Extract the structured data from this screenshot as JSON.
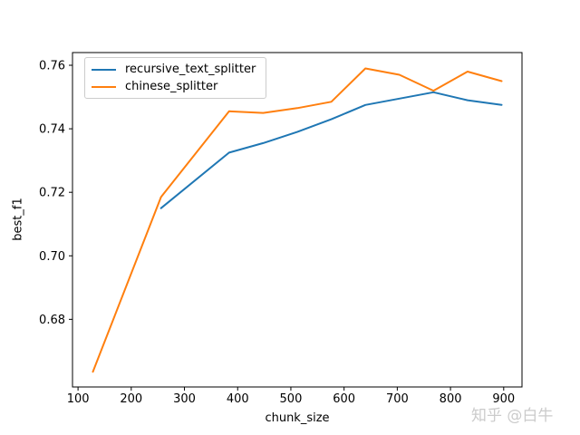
{
  "figure": {
    "watermark": "知乎 @白牛"
  },
  "chart_data": {
    "type": "line",
    "title": "",
    "xlabel": "chunk_size",
    "ylabel": "best_f1",
    "xlim": [
      89.6,
      934.4
    ],
    "ylim": [
      0.6587,
      0.764
    ],
    "x_ticks": [
      100,
      200,
      300,
      400,
      500,
      600,
      700,
      800,
      900
    ],
    "y_ticks": [
      0.68,
      0.7,
      0.72,
      0.74,
      0.76
    ],
    "y_tick_labels": [
      "0.68",
      "0.70",
      "0.72",
      "0.74",
      "0.76"
    ],
    "grid": false,
    "legend_position": "upper left",
    "series": [
      {
        "name": "recursive_text_splitter",
        "color": "#1f77b4",
        "x": [
          256,
          384,
          448,
          512,
          576,
          640,
          704,
          768,
          832,
          896
        ],
        "y": [
          0.715,
          0.7325,
          0.7355,
          0.739,
          0.743,
          0.7475,
          0.7495,
          0.7515,
          0.749,
          0.7475
        ]
      },
      {
        "name": "chinese_splitter",
        "color": "#ff7f0e",
        "x": [
          128,
          256,
          384,
          448,
          512,
          576,
          640,
          704,
          768,
          832,
          896
        ],
        "y": [
          0.6635,
          0.7185,
          0.7455,
          0.745,
          0.7465,
          0.7485,
          0.759,
          0.757,
          0.752,
          0.758,
          0.755
        ]
      }
    ]
  }
}
